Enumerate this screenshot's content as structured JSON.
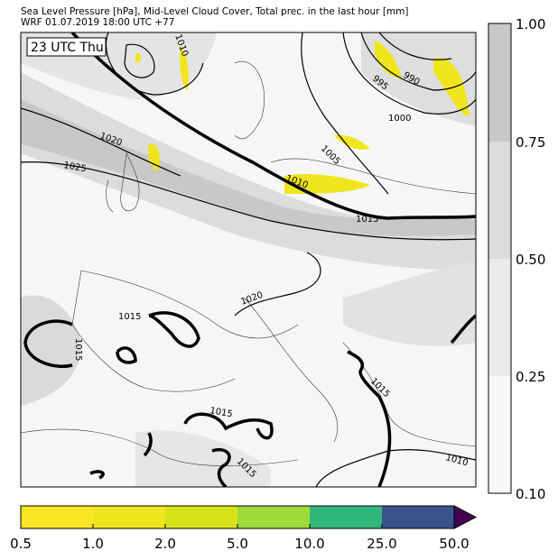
{
  "header": {
    "title_line1": "Sea Level Pressure [hPa], Mid-Level Cloud Cover, Total prec. in the last hour [mm]",
    "title_line2": "WRF 01.07.2019 18:00 UTC +77"
  },
  "map": {
    "time_label": "23 UTC Thu",
    "isobar_labels": [
      "1010",
      "995",
      "990",
      "1000",
      "1005",
      "1010",
      "1015",
      "1020",
      "1025",
      "1020",
      "1015",
      "1015",
      "1015",
      "1015",
      "1015",
      "1010"
    ]
  },
  "cloud_colorbar": {
    "ticks": [
      "0.10",
      "0.25",
      "0.50",
      "0.75",
      "1.00"
    ],
    "colors": [
      "#f7f7f7",
      "#ebebeb",
      "#dcdcdc",
      "#c8c8c8"
    ]
  },
  "precip_colorbar": {
    "ticks": [
      "0.5",
      "1.0",
      "2.0",
      "5.0",
      "10.0",
      "25.0",
      "50.0"
    ],
    "colors": [
      "#fbe625",
      "#f0e51d",
      "#d8e219",
      "#a0da39",
      "#32b77a",
      "#3b528b",
      "#440154"
    ]
  }
}
